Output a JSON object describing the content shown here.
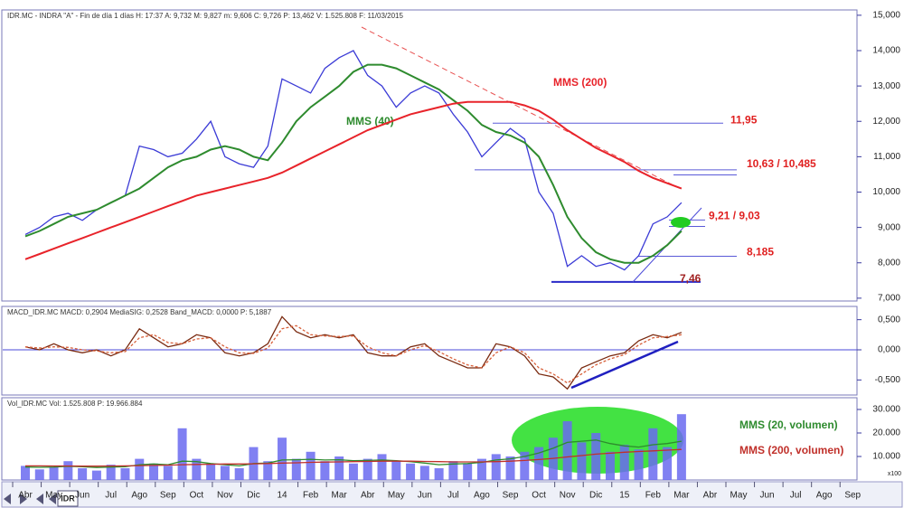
{
  "chart_data": [
    {
      "type": "line",
      "header": "IDR.MC - INDRA \"A\" - Fin de día 1 días  H: 17:37  A: 9,732  M: 9,827  m: 9,606  C: 9,726  P: 13,462  V: 1.525.808  F: 11/03/2015",
      "ylim": [
        6.92,
        15.15
      ],
      "yticks": [
        {
          "value": 7,
          "label": "7,000"
        },
        {
          "value": 8,
          "label": "8,000"
        },
        {
          "value": 9,
          "label": "9,000"
        },
        {
          "value": 10,
          "label": "10,000"
        },
        {
          "value": 11,
          "label": "11,000"
        },
        {
          "value": 12,
          "label": "12,000"
        },
        {
          "value": 13,
          "label": "13,000"
        },
        {
          "value": 14,
          "label": "14,000"
        },
        {
          "value": 15,
          "label": "15,000"
        }
      ],
      "series": [
        {
          "color": "#3b3bd6",
          "values": [
            8.8,
            9.0,
            9.3,
            9.4,
            9.2,
            9.5,
            9.7,
            9.9,
            11.3,
            11.2,
            11.0,
            11.1,
            11.5,
            12.0,
            11.0,
            10.8,
            10.7,
            11.3,
            13.2,
            13.0,
            12.8,
            13.5,
            13.8,
            14.0,
            13.3,
            13.0,
            12.4,
            12.8,
            13.0,
            12.8,
            12.2,
            11.7,
            11.0,
            11.4,
            11.8,
            11.5,
            10.0,
            9.4,
            7.9,
            8.2,
            7.9,
            8.0,
            7.8,
            8.2,
            9.1,
            9.3,
            9.7,
            null,
            null,
            null,
            null,
            null,
            null,
            null,
            null,
            null,
            null,
            null,
            null,
            null
          ]
        },
        {
          "name": "MMS (40)",
          "color": "#2e8b2e",
          "values": [
            8.75,
            8.9,
            9.1,
            9.3,
            9.4,
            9.5,
            9.7,
            9.9,
            10.1,
            10.4,
            10.7,
            10.9,
            11.0,
            11.2,
            11.3,
            11.2,
            11.0,
            10.9,
            11.4,
            12.0,
            12.4,
            12.7,
            13.0,
            13.4,
            13.6,
            13.6,
            13.5,
            13.3,
            13.1,
            12.9,
            12.6,
            12.3,
            11.9,
            11.7,
            11.6,
            11.4,
            11.0,
            10.2,
            9.3,
            8.7,
            8.3,
            8.1,
            8.0,
            8.0,
            8.2,
            8.5,
            8.9,
            null,
            null,
            null,
            null,
            null,
            null,
            null,
            null,
            null,
            null,
            null,
            null,
            null
          ]
        },
        {
          "name": "MMS (200)",
          "color": "#e8232a",
          "values": [
            8.1,
            8.25,
            8.4,
            8.55,
            8.7,
            8.85,
            9.0,
            9.15,
            9.3,
            9.45,
            9.6,
            9.75,
            9.9,
            10.0,
            10.1,
            10.2,
            10.3,
            10.4,
            10.55,
            10.75,
            10.95,
            11.15,
            11.35,
            11.55,
            11.75,
            11.9,
            12.05,
            12.2,
            12.3,
            12.4,
            12.5,
            12.55,
            12.55,
            12.55,
            12.55,
            12.45,
            12.3,
            12.05,
            11.75,
            11.5,
            11.25,
            11.05,
            10.85,
            10.6,
            10.4,
            10.25,
            10.1,
            null,
            null,
            null,
            null,
            null,
            null,
            null,
            null,
            null,
            null,
            null,
            null,
            null
          ]
        }
      ],
      "annotations": [
        {
          "label": "11,95",
          "levels": [
            11.95
          ]
        },
        {
          "label": "10,63 / 10,485",
          "levels": [
            10.63,
            10.485
          ]
        },
        {
          "label": "9,21 / 9,03",
          "levels": [
            9.21,
            9.03
          ]
        },
        {
          "label": "8,185",
          "levels": [
            8.185
          ]
        },
        {
          "label": "7,46",
          "levels": [
            7.46
          ]
        }
      ]
    },
    {
      "type": "line",
      "header": "MACD_IDR.MC  MACD: 0,2904  MediaSIG: 0,2528  Band_MACD: 0,0000  P: 5,1887",
      "ylim": [
        -0.75,
        0.72
      ],
      "band": 0,
      "yticks": [
        {
          "value": -0.5,
          "label": "-0,500"
        },
        {
          "value": 0,
          "label": "0,000"
        },
        {
          "value": 0.5,
          "label": "0,500"
        }
      ],
      "series": [
        {
          "color": "#7a2a10",
          "values": [
            0.05,
            0.0,
            0.1,
            0.0,
            -0.05,
            0.0,
            -0.1,
            0.0,
            0.35,
            0.2,
            0.05,
            0.1,
            0.25,
            0.2,
            -0.05,
            -0.1,
            -0.05,
            0.1,
            0.55,
            0.3,
            0.2,
            0.25,
            0.2,
            0.25,
            -0.05,
            -0.1,
            -0.1,
            0.05,
            0.1,
            -0.1,
            -0.2,
            -0.3,
            -0.3,
            0.1,
            0.05,
            -0.1,
            -0.4,
            -0.45,
            -0.65,
            -0.3,
            -0.2,
            -0.1,
            -0.05,
            0.15,
            0.25,
            0.2,
            0.29,
            null,
            null,
            null,
            null,
            null,
            null,
            null,
            null,
            null,
            null,
            null,
            null,
            null
          ]
        },
        {
          "color": "#d8603a",
          "dashed": true,
          "values": [
            0.05,
            0.03,
            0.05,
            0.04,
            0.0,
            -0.02,
            -0.05,
            -0.03,
            0.2,
            0.25,
            0.12,
            0.1,
            0.18,
            0.2,
            0.05,
            -0.05,
            -0.06,
            0.03,
            0.35,
            0.4,
            0.25,
            0.23,
            0.22,
            0.23,
            0.05,
            -0.05,
            -0.1,
            0.0,
            0.07,
            -0.03,
            -0.15,
            -0.25,
            -0.3,
            -0.05,
            0.05,
            -0.05,
            -0.3,
            -0.4,
            -0.55,
            -0.4,
            -0.25,
            -0.15,
            -0.08,
            0.08,
            0.2,
            0.22,
            0.25,
            null,
            null,
            null,
            null,
            null,
            null,
            null,
            null,
            null,
            null,
            null,
            null,
            null
          ]
        }
      ]
    },
    {
      "type": "bar",
      "header": "Vol_IDR.MC  Vol: 1.525.808  P: 19.966.884",
      "unit_label": "x100",
      "ylim": [
        0,
        35000
      ],
      "yticks": [
        {
          "value": 10000,
          "label": "10.000"
        },
        {
          "value": 20000,
          "label": "20.000"
        },
        {
          "value": 30000,
          "label": "30.000"
        }
      ],
      "categories": [
        "Abr",
        null,
        "May",
        null,
        "Jun",
        null,
        "Jul",
        null,
        "Ago",
        null,
        "Sep",
        null,
        "Oct",
        null,
        "Nov",
        null,
        "Dic",
        null,
        "14",
        null,
        "Feb",
        null,
        "Mar",
        null,
        "Abr",
        null,
        "May",
        null,
        "Jun",
        null,
        "Jul",
        null,
        "Ago",
        null,
        "Sep",
        null,
        "Oct",
        null,
        "Nov",
        null,
        "Dic",
        null,
        "15",
        null,
        "Feb",
        null,
        "Mar",
        null,
        "Abr",
        null,
        "May",
        null,
        "Jun",
        null,
        "Jul",
        null,
        "Ago",
        null,
        "Sep",
        null
      ],
      "series": [
        {
          "color": "#6a6af0",
          "values": [
            6000,
            4500,
            5500,
            8000,
            5000,
            4000,
            6500,
            5000,
            9000,
            7000,
            6000,
            22000,
            9000,
            7000,
            6000,
            5000,
            14000,
            8000,
            18000,
            9000,
            12000,
            8000,
            10000,
            7000,
            9000,
            11000,
            8000,
            7000,
            6000,
            5000,
            8000,
            7000,
            9000,
            11000,
            10000,
            12000,
            14000,
            18000,
            25000,
            16000,
            20000,
            12000,
            15000,
            13000,
            22000,
            14000,
            28000,
            null,
            null,
            null,
            null,
            null,
            null,
            null,
            null,
            null,
            null,
            null,
            null,
            null
          ]
        },
        {
          "name": "MMS (20, volumen)",
          "type": "line",
          "color": "#2e8b2e",
          "values": [
            5500,
            5400,
            5500,
            5800,
            5600,
            5300,
            5500,
            5600,
            6500,
            6800,
            6500,
            8000,
            7800,
            7000,
            6500,
            6000,
            7000,
            7200,
            8500,
            8600,
            8800,
            8500,
            8600,
            8200,
            8300,
            8500,
            8200,
            7800,
            7200,
            6500,
            6800,
            7000,
            7500,
            8500,
            9000,
            10000,
            11500,
            13500,
            16000,
            16500,
            17000,
            15500,
            14500,
            14000,
            15000,
            15500,
            16500,
            null,
            null,
            null,
            null,
            null,
            null,
            null,
            null,
            null,
            null,
            null,
            null,
            null
          ]
        },
        {
          "name": "MMS (200, volumen)",
          "type": "line",
          "color": "#c0302a",
          "values": [
            6000,
            6000,
            5950,
            5950,
            5900,
            5900,
            5950,
            6000,
            6100,
            6200,
            6300,
            6500,
            6600,
            6700,
            6800,
            6800,
            6900,
            7000,
            7200,
            7300,
            7500,
            7600,
            7700,
            7800,
            7900,
            8000,
            8000,
            8000,
            7900,
            7800,
            7700,
            7700,
            7700,
            7800,
            8000,
            8300,
            8700,
            9200,
            9800,
            10400,
            11000,
            11400,
            11800,
            12100,
            12400,
            12700,
            13000,
            null,
            null,
            null,
            null,
            null,
            null,
            null,
            null,
            null,
            null,
            null,
            null,
            null
          ]
        }
      ]
    }
  ],
  "tabs": [
    "IDR"
  ]
}
